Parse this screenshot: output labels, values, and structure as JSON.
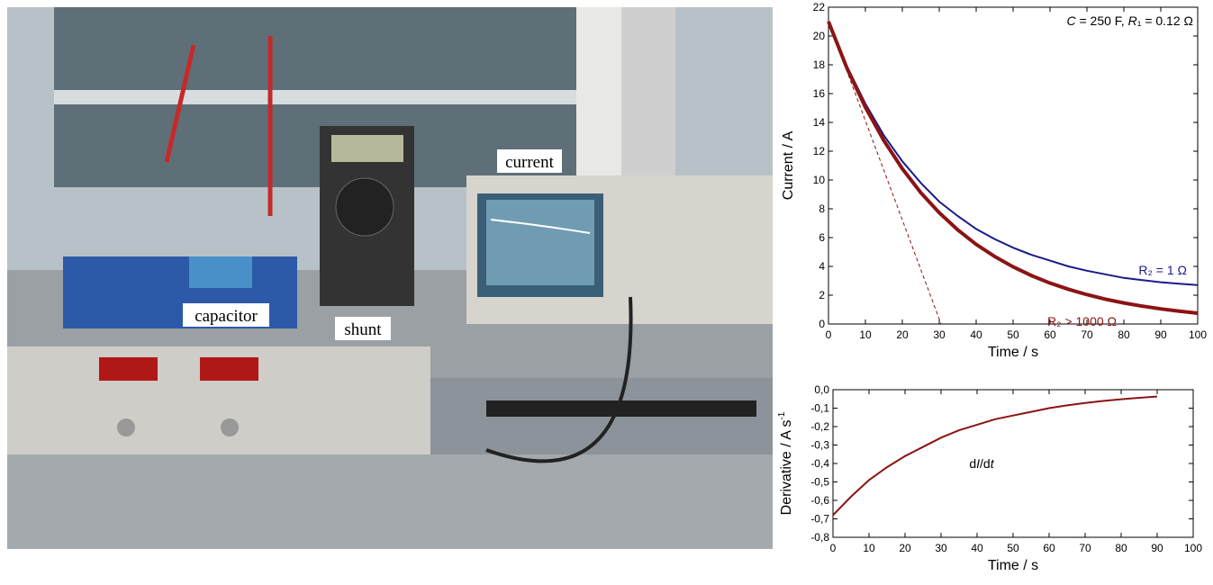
{
  "photo": {
    "labels": [
      "capacitor",
      "shunt",
      "current"
    ]
  },
  "chart_data": [
    {
      "type": "line",
      "annotation": [
        "C",
        " = 250 F,  ",
        "R",
        "₁ = 0.12 Ω"
      ],
      "x_label": "Time / s",
      "y_label": "Current / A",
      "x": [
        0,
        5,
        10,
        15,
        20,
        25,
        30,
        35,
        40,
        45,
        50,
        55,
        60,
        65,
        70,
        75,
        80,
        85,
        90,
        95,
        100
      ],
      "series": [
        {
          "name": "R₂ = 1 Ω",
          "color": "#1a1a8c",
          "values": [
            21,
            17.9,
            15.3,
            13.1,
            11.3,
            9.8,
            8.5,
            7.5,
            6.6,
            5.9,
            5.3,
            4.8,
            4.4,
            4.0,
            3.7,
            3.45,
            3.2,
            3.05,
            2.9,
            2.8,
            2.7
          ]
        },
        {
          "name": "R₂ > 1000 Ω",
          "color": "#8b1414",
          "values": [
            21,
            17.77,
            15.05,
            12.74,
            10.78,
            9.12,
            7.73,
            6.54,
            5.53,
            4.69,
            3.97,
            3.36,
            2.84,
            2.41,
            2.04,
            1.72,
            1.46,
            1.24,
            1.05,
            0.89,
            0.75
          ]
        }
      ],
      "tangent": {
        "x": [
          0,
          30.5
        ],
        "values": [
          21,
          0
        ],
        "color": "#8b1414"
      },
      "xlim": [
        0,
        100
      ],
      "xticks": [
        0,
        10,
        20,
        30,
        40,
        50,
        60,
        70,
        80,
        90,
        100
      ],
      "ylim": [
        0,
        22
      ],
      "yticks": [
        0,
        2,
        4,
        6,
        8,
        10,
        12,
        14,
        16,
        18,
        20,
        22
      ]
    },
    {
      "type": "line",
      "annotation": [
        "d",
        "I",
        "/d",
        "t"
      ],
      "x_label": "Time / s",
      "y_label": [
        "Derivative / A s",
        "-1"
      ],
      "x": [
        0,
        5,
        10,
        15,
        20,
        25,
        30,
        35,
        40,
        45,
        50,
        55,
        60,
        65,
        70,
        75,
        80,
        85,
        90
      ],
      "series": [
        {
          "color": "#8b1414",
          "values": [
            -0.68,
            -0.58,
            -0.49,
            -0.42,
            -0.36,
            -0.31,
            -0.26,
            -0.22,
            -0.19,
            -0.16,
            -0.14,
            -0.12,
            -0.1,
            -0.085,
            -0.072,
            -0.061,
            -0.052,
            -0.044,
            -0.037
          ]
        }
      ],
      "xlim": [
        0,
        100
      ],
      "xticks": [
        0,
        10,
        20,
        30,
        40,
        50,
        60,
        70,
        80,
        90,
        100
      ],
      "ylim": [
        -0.8,
        0.0
      ],
      "yticks": [
        {
          "value": -0.8,
          "label": "-0,8"
        },
        {
          "value": -0.7,
          "label": "-0,7"
        },
        {
          "value": -0.6,
          "label": "-0,6"
        },
        {
          "value": -0.5,
          "label": "-0,5"
        },
        {
          "value": -0.4,
          "label": "-0,4"
        },
        {
          "value": -0.3,
          "label": "-0,3"
        },
        {
          "value": -0.2,
          "label": "-0,2"
        },
        {
          "value": -0.1,
          "label": "-0,1"
        },
        {
          "value": 0.0,
          "label": "0,0"
        }
      ]
    }
  ]
}
